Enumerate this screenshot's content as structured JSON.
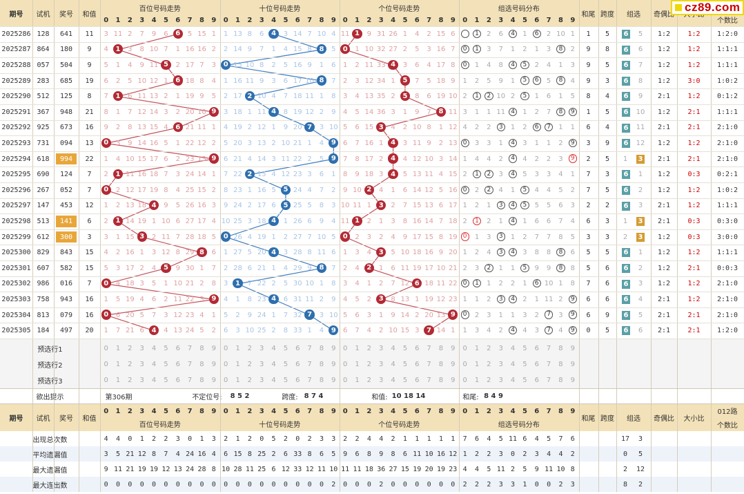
{
  "headers": {
    "issue": "期号",
    "test": "试机",
    "prize": "奖号",
    "sum": "和值",
    "hundreds": "百位号码走势",
    "tens": "十位号码走势",
    "units": "个位号码走势",
    "group_dist": "组选号码分布",
    "sum_tail": "和尾",
    "span": "跨度",
    "group": "组选",
    "odd_even": "奇偶比",
    "big_small": "大小比",
    "road012": "012路",
    "road012_sub": "个数比"
  },
  "digits": [
    "0",
    "1",
    "2",
    "3",
    "4",
    "5",
    "6",
    "7",
    "8",
    "9"
  ],
  "rows": [
    {
      "issue": "2025286",
      "test": "128",
      "prize": "641",
      "sum": "11",
      "h": [
        3,
        11,
        2,
        7,
        9,
        6,
        "6",
        5,
        15,
        1
      ],
      "t": [
        1,
        13,
        8,
        6,
        "4",
        3,
        14,
        7,
        10,
        4
      ],
      "u": [
        11,
        "1",
        9,
        31,
        26,
        1,
        4,
        2,
        15,
        6
      ],
      "g": [
        "",
        "1",
        2,
        6,
        "4",
        1,
        "6",
        2,
        10,
        1
      ],
      "tail": "1",
      "span": "5",
      "grp": "6",
      "grp2": "5",
      "oe": "1:2",
      "bs": "1:2",
      "r012": "1:2:0"
    },
    {
      "issue": "2025287",
      "test": "864",
      "prize": "180",
      "sum": "9",
      "h": [
        4,
        "1",
        3,
        8,
        10,
        7,
        1,
        16,
        16,
        2
      ],
      "t": [
        2,
        14,
        9,
        7,
        1,
        4,
        15,
        8,
        "8",
        5
      ],
      "u": [
        "0",
        1,
        10,
        32,
        27,
        2,
        5,
        3,
        16,
        7
      ],
      "g": [
        "0",
        "1",
        3,
        7,
        1,
        2,
        1,
        3,
        "8",
        2
      ],
      "tail": "9",
      "span": "8",
      "grp": "6",
      "grp2": "6",
      "oe": "1:2",
      "bs": "1:2",
      "r012": "1:1:1"
    },
    {
      "issue": "2025288",
      "test": "057",
      "prize": "504",
      "sum": "9",
      "h": [
        5,
        1,
        4,
        9,
        11,
        "5",
        2,
        17,
        7,
        3
      ],
      "t": [
        "0",
        15,
        10,
        8,
        2,
        5,
        16,
        9,
        1,
        6
      ],
      "u": [
        1,
        2,
        11,
        33,
        "4",
        3,
        6,
        4,
        17,
        8
      ],
      "g": [
        "0",
        1,
        4,
        8,
        "4",
        "5",
        2,
        4,
        1,
        3
      ],
      "tail": "9",
      "span": "5",
      "grp": "6",
      "grp2": "7",
      "oe": "1:2",
      "bs": "1:2",
      "r012": "1:1:1"
    },
    {
      "issue": "2025289",
      "test": "283",
      "prize": "685",
      "sum": "19",
      "h": [
        6,
        2,
        5,
        10,
        12,
        1,
        "6",
        18,
        8,
        4
      ],
      "t": [
        1,
        16,
        11,
        9,
        3,
        6,
        17,
        10,
        "8",
        7
      ],
      "u": [
        2,
        3,
        12,
        34,
        1,
        "5",
        7,
        5,
        18,
        9
      ],
      "g": [
        1,
        2,
        5,
        9,
        1,
        "5",
        "6",
        5,
        "8",
        4
      ],
      "tail": "9",
      "span": "3",
      "grp": "6",
      "grp2": "8",
      "oe": "1:2",
      "bs": "3:0",
      "r012": "1:0:2"
    },
    {
      "issue": "2025290",
      "test": "512",
      "prize": "125",
      "sum": "8",
      "h": [
        7,
        "1",
        6,
        11,
        13,
        2,
        1,
        19,
        9,
        5
      ],
      "t": [
        2,
        17,
        "2",
        10,
        4,
        7,
        18,
        11,
        1,
        8
      ],
      "u": [
        3,
        4,
        13,
        35,
        2,
        "5",
        8,
        6,
        19,
        10
      ],
      "g": [
        2,
        "1",
        "2",
        10,
        2,
        "5",
        1,
        6,
        1,
        5
      ],
      "tail": "8",
      "span": "4",
      "grp": "6",
      "grp2": "9",
      "oe": "2:1",
      "bs": "1:2",
      "r012": "0:1:2"
    },
    {
      "issue": "2025291",
      "test": "367",
      "prize": "948",
      "sum": "21",
      "h": [
        8,
        1,
        7,
        12,
        14,
        3,
        2,
        20,
        10,
        "9"
      ],
      "t": [
        3,
        18,
        1,
        11,
        "4",
        8,
        19,
        12,
        2,
        9
      ],
      "u": [
        4,
        5,
        14,
        36,
        3,
        1,
        9,
        7,
        "8",
        11
      ],
      "g": [
        3,
        1,
        1,
        11,
        "4",
        1,
        2,
        7,
        "8",
        "9"
      ],
      "tail": "1",
      "span": "5",
      "grp": "6",
      "grp2": "10",
      "oe": "1:2",
      "bs": "2:1",
      "r012": "1:1:1"
    },
    {
      "issue": "2025292",
      "test": "925",
      "prize": "673",
      "sum": "16",
      "h": [
        9,
        2,
        8,
        13,
        15,
        4,
        "6",
        21,
        11,
        1
      ],
      "t": [
        4,
        19,
        2,
        12,
        1,
        9,
        20,
        "7",
        3,
        10
      ],
      "u": [
        5,
        6,
        15,
        "3",
        4,
        2,
        10,
        8,
        1,
        12
      ],
      "g": [
        4,
        2,
        2,
        "3",
        1,
        2,
        "6",
        "7",
        1,
        1
      ],
      "tail": "6",
      "span": "4",
      "grp": "6",
      "grp2": "11",
      "oe": "2:1",
      "bs": "2:1",
      "r012": "2:1:0"
    },
    {
      "issue": "2025293",
      "test": "731",
      "prize": "094",
      "sum": "13",
      "h": [
        "0",
        3,
        9,
        14,
        16,
        5,
        1,
        22,
        12,
        2
      ],
      "t": [
        5,
        20,
        3,
        13,
        2,
        10,
        21,
        1,
        4,
        "9"
      ],
      "u": [
        6,
        7,
        16,
        1,
        "4",
        3,
        11,
        9,
        2,
        13
      ],
      "g": [
        "0",
        3,
        3,
        1,
        "4",
        3,
        1,
        1,
        2,
        "9"
      ],
      "tail": "3",
      "span": "9",
      "grp": "6",
      "grp2": "12",
      "oe": "1:2",
      "bs": "1:2",
      "r012": "2:1:0"
    },
    {
      "issue": "2025294",
      "test": "618",
      "prize": "994",
      "sum": "22",
      "h": [
        1,
        4,
        10,
        15,
        17,
        6,
        2,
        23,
        13,
        "9"
      ],
      "t": [
        6,
        21,
        4,
        14,
        3,
        11,
        22,
        2,
        5,
        "9"
      ],
      "u": [
        7,
        8,
        17,
        2,
        "4",
        4,
        12,
        10,
        3,
        14
      ],
      "g": [
        1,
        4,
        4,
        2,
        "4",
        4,
        2,
        2,
        3,
        "9"
      ],
      "tail": "2",
      "span": "5",
      "grp": "1",
      "grp2": "3",
      "oe": "2:1",
      "bs": "2:1",
      "r012": "2:1:0"
    },
    {
      "issue": "2025295",
      "test": "690",
      "prize": "124",
      "sum": "7",
      "h": [
        2,
        "1",
        11,
        16,
        18,
        7,
        3,
        24,
        14,
        1
      ],
      "t": [
        7,
        22,
        "2",
        15,
        4,
        12,
        23,
        3,
        6,
        1
      ],
      "u": [
        8,
        9,
        18,
        3,
        "4",
        5,
        13,
        11,
        4,
        15
      ],
      "g": [
        2,
        "1",
        "2",
        3,
        "4",
        5,
        3,
        3,
        4,
        1
      ],
      "tail": "7",
      "span": "3",
      "grp": "6",
      "grp2": "1",
      "oe": "1:2",
      "bs": "0:3",
      "r012": "0:2:1"
    },
    {
      "issue": "2025296",
      "test": "267",
      "prize": "052",
      "sum": "7",
      "h": [
        "0",
        2,
        12,
        17,
        19,
        8,
        4,
        25,
        15,
        2
      ],
      "t": [
        8,
        23,
        1,
        16,
        5,
        "5",
        24,
        4,
        7,
        2
      ],
      "u": [
        9,
        10,
        "2",
        4,
        1,
        6,
        14,
        12,
        5,
        16
      ],
      "g": [
        "0",
        2,
        "2",
        4,
        1,
        "5",
        4,
        4,
        5,
        2
      ],
      "tail": "7",
      "span": "5",
      "grp": "6",
      "grp2": "2",
      "oe": "1:2",
      "bs": "1:2",
      "r012": "1:0:2"
    },
    {
      "issue": "2025297",
      "test": "147",
      "prize": "453",
      "sum": "12",
      "h": [
        1,
        2,
        13,
        18,
        "4",
        9,
        5,
        26,
        16,
        3
      ],
      "t": [
        9,
        24,
        2,
        17,
        6,
        "5",
        25,
        5,
        8,
        3
      ],
      "u": [
        10,
        11,
        1,
        "3",
        2,
        7,
        15,
        13,
        6,
        17
      ],
      "g": [
        1,
        2,
        1,
        "3",
        "4",
        "5",
        5,
        5,
        6,
        3
      ],
      "tail": "2",
      "span": "2",
      "grp": "6",
      "grp2": "3",
      "oe": "2:1",
      "bs": "1:2",
      "r012": "1:1:1"
    },
    {
      "issue": "2025298",
      "test": "513",
      "prize": "141",
      "sum": "6",
      "h": [
        2,
        "1",
        14,
        19,
        1,
        10,
        6,
        27,
        17,
        4
      ],
      "t": [
        10,
        25,
        3,
        18,
        "4",
        1,
        26,
        6,
        9,
        4
      ],
      "u": [
        11,
        "1",
        2,
        1,
        3,
        8,
        16,
        14,
        7,
        18
      ],
      "g": [
        2,
        "1",
        2,
        1,
        "4",
        1,
        6,
        6,
        7,
        4
      ],
      "tail": "6",
      "span": "3",
      "grp": "1",
      "grp2": "3",
      "oe": "2:1",
      "bs": "0:3",
      "r012": "0:3:0"
    },
    {
      "issue": "2025299",
      "test": "612",
      "prize": "300",
      "sum": "3",
      "h": [
        3,
        1,
        15,
        "3",
        2,
        11,
        7,
        28,
        18,
        5
      ],
      "t": [
        "0",
        26,
        4,
        19,
        1,
        2,
        27,
        7,
        10,
        5
      ],
      "u": [
        "0",
        2,
        3,
        2,
        4,
        9,
        17,
        15,
        8,
        19
      ],
      "g": [
        "0",
        1,
        3,
        "3",
        1,
        2,
        7,
        7,
        8,
        5
      ],
      "tail": "3",
      "span": "3",
      "grp": "2",
      "grp2": "3",
      "oe": "1:2",
      "bs": "0:3",
      "r012": "3:0:0"
    },
    {
      "issue": "2025300",
      "test": "829",
      "prize": "843",
      "sum": "15",
      "h": [
        4,
        2,
        16,
        1,
        3,
        12,
        8,
        29,
        "8",
        6
      ],
      "t": [
        1,
        27,
        5,
        20,
        "4",
        3,
        28,
        8,
        11,
        6
      ],
      "u": [
        1,
        3,
        4,
        "3",
        5,
        10,
        18,
        16,
        9,
        20
      ],
      "g": [
        1,
        2,
        4,
        "3",
        "4",
        3,
        8,
        8,
        "8",
        6
      ],
      "tail": "5",
      "span": "5",
      "grp": "6",
      "grp2": "1",
      "oe": "1:2",
      "bs": "1:2",
      "r012": "1:1:1"
    },
    {
      "issue": "2025301",
      "test": "607",
      "prize": "582",
      "sum": "15",
      "h": [
        5,
        3,
        17,
        2,
        4,
        "5",
        9,
        30,
        1,
        7
      ],
      "t": [
        2,
        28,
        6,
        21,
        1,
        4,
        29,
        9,
        "8",
        7
      ],
      "u": [
        2,
        4,
        "2",
        1,
        6,
        11,
        19,
        17,
        10,
        21
      ],
      "g": [
        2,
        3,
        "2",
        1,
        1,
        "5",
        9,
        9,
        "8",
        8
      ],
      "tail": "5",
      "span": "6",
      "grp": "6",
      "grp2": "2",
      "oe": "1:2",
      "bs": "2:1",
      "r012": "0:0:3"
    },
    {
      "issue": "2025302",
      "test": "986",
      "prize": "016",
      "sum": "7",
      "h": [
        "0",
        4,
        18,
        3,
        5,
        1,
        10,
        21,
        2,
        8
      ],
      "t": [
        3,
        "1",
        7,
        22,
        2,
        5,
        30,
        10,
        1,
        8
      ],
      "u": [
        3,
        4,
        1,
        2,
        7,
        12,
        "6",
        18,
        11,
        22
      ],
      "g": [
        "0",
        "1",
        1,
        2,
        2,
        1,
        "6",
        10,
        1,
        8
      ],
      "tail": "7",
      "span": "6",
      "grp": "6",
      "grp2": "3",
      "oe": "1:2",
      "bs": "1:2",
      "r012": "2:1:0"
    },
    {
      "issue": "2025303",
      "test": "758",
      "prize": "943",
      "sum": "16",
      "h": [
        1,
        5,
        19,
        4,
        6,
        2,
        11,
        22,
        3,
        "9"
      ],
      "t": [
        4,
        1,
        8,
        23,
        "4",
        6,
        31,
        11,
        2,
        9
      ],
      "u": [
        4,
        5,
        2,
        "3",
        8,
        13,
        1,
        19,
        12,
        23
      ],
      "g": [
        1,
        1,
        2,
        "3",
        "4",
        2,
        1,
        11,
        2,
        "9"
      ],
      "tail": "6",
      "span": "6",
      "grp": "6",
      "grp2": "4",
      "oe": "2:1",
      "bs": "1:2",
      "r012": "2:1:0"
    },
    {
      "issue": "2025304",
      "test": "813",
      "prize": "079",
      "sum": "16",
      "h": [
        "0",
        6,
        20,
        5,
        7,
        3,
        12,
        23,
        4,
        1
      ],
      "t": [
        5,
        2,
        9,
        24,
        1,
        7,
        32,
        "7",
        3,
        10
      ],
      "u": [
        5,
        6,
        3,
        1,
        9,
        14,
        2,
        20,
        13,
        "9"
      ],
      "g": [
        "0",
        2,
        3,
        1,
        1,
        3,
        2,
        "7",
        3,
        "9"
      ],
      "tail": "6",
      "span": "9",
      "grp": "6",
      "grp2": "5",
      "oe": "2:1",
      "bs": "2:1",
      "r012": "2:1:0"
    },
    {
      "issue": "2025305",
      "test": "184",
      "prize": "497",
      "sum": "20",
      "h": [
        1,
        7,
        21,
        6,
        "4",
        4,
        13,
        24,
        5,
        2
      ],
      "t": [
        6,
        3,
        10,
        25,
        2,
        8,
        33,
        1,
        4,
        "9"
      ],
      "u": [
        6,
        7,
        4,
        2,
        10,
        15,
        3,
        "7",
        14,
        1
      ],
      "g": [
        1,
        3,
        4,
        2,
        "4",
        4,
        3,
        "7",
        4,
        "9"
      ],
      "tail": "0",
      "span": "5",
      "grp": "6",
      "grp2": "6",
      "oe": "2:1",
      "bs": "2:1",
      "r012": "1:2:0"
    }
  ],
  "preselect": [
    "预选行1",
    "预选行2",
    "预选行3"
  ],
  "hint": {
    "label": "欲出提示",
    "period": "第306期",
    "pos_label": "不定位号:",
    "pos_val": "8 5 2",
    "span_label": "跨度:",
    "span_val": "8 7 4",
    "sum_label": "和值:",
    "sum_val": "10 18 14",
    "tail_label": "和尾:",
    "tail_val": "8 4 9"
  },
  "stats": [
    {
      "label": "出现总次数",
      "h": [
        4,
        4,
        0,
        1,
        2,
        2,
        3,
        0,
        1,
        3
      ],
      "t": [
        2,
        1,
        2,
        0,
        5,
        2,
        0,
        2,
        3,
        3
      ],
      "u": [
        2,
        2,
        4,
        4,
        2,
        1,
        1,
        1,
        1,
        1
      ],
      "g": [
        7,
        6,
        4,
        5,
        11,
        6,
        4,
        5,
        7,
        6
      ],
      "grp": "17",
      "grp2": "3"
    },
    {
      "label": "平均遗漏值",
      "h": [
        3,
        5,
        21,
        12,
        8,
        7,
        4,
        24,
        16,
        4
      ],
      "t": [
        6,
        15,
        8,
        25,
        2,
        6,
        33,
        8,
        6,
        5
      ],
      "u": [
        9,
        6,
        8,
        9,
        8,
        6,
        11,
        10,
        16,
        12
      ],
      "g": [
        1,
        2,
        2,
        3,
        0,
        2,
        3,
        4,
        4,
        2
      ],
      "grp": "0",
      "grp2": "5"
    },
    {
      "label": "最大遗漏值",
      "h": [
        9,
        11,
        21,
        19,
        19,
        12,
        13,
        24,
        28,
        8
      ],
      "t": [
        10,
        28,
        11,
        25,
        6,
        12,
        33,
        12,
        11,
        10
      ],
      "u": [
        11,
        11,
        18,
        36,
        27,
        15,
        19,
        20,
        19,
        23
      ],
      "g": [
        4,
        4,
        5,
        11,
        2,
        5,
        9,
        11,
        10,
        8
      ],
      "grp": "2",
      "grp2": "12"
    },
    {
      "label": "最大连出数",
      "h": [
        0,
        0,
        0,
        0,
        0,
        0,
        0,
        0,
        0,
        0
      ],
      "t": [
        0,
        0,
        0,
        0,
        0,
        0,
        0,
        0,
        0,
        2
      ],
      "u": [
        0,
        0,
        0,
        2,
        0,
        0,
        0,
        0,
        0,
        0
      ],
      "g": [
        2,
        2,
        2,
        3,
        3,
        1,
        0,
        0,
        2,
        3
      ],
      "grp": "8",
      "grp2": "2"
    }
  ],
  "logo": "cz89.com",
  "colors": {
    "hundreds_ball": "#b22a34",
    "tens_ball": "#2f6fae",
    "units_ball": "#b22a34",
    "group_tag": "#5b9fa6",
    "group3_tag": "#d59b31",
    "header_bg": "#f3e2b9"
  }
}
